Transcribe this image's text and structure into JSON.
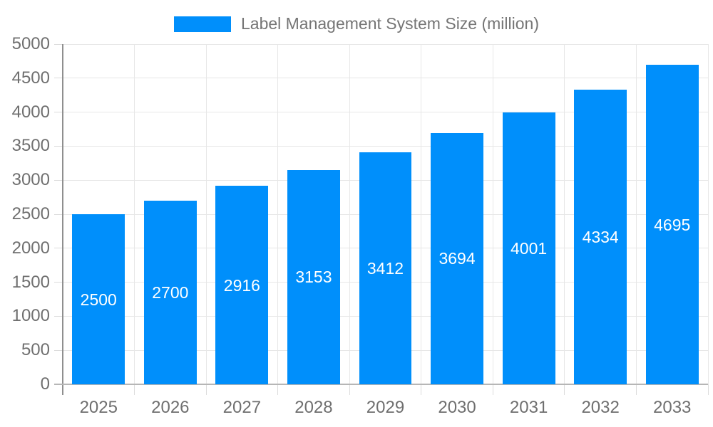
{
  "chart_data": {
    "type": "bar",
    "title": "",
    "legend_label": "Label Management System Size (million)",
    "legend_position": "top",
    "categories": [
      "2025",
      "2026",
      "2027",
      "2028",
      "2029",
      "2030",
      "2031",
      "2032",
      "2033"
    ],
    "values": [
      2500,
      2700,
      2916,
      3153,
      3412,
      3694,
      4001,
      4334,
      4695
    ],
    "xlabel": "",
    "ylabel": "",
    "ylim": [
      0,
      5000
    ],
    "ytick_step": 500,
    "ytick_labels": [
      "0",
      "500",
      "1000",
      "1500",
      "2000",
      "2500",
      "3000",
      "3500",
      "4000",
      "4500",
      "5000"
    ],
    "grid": true,
    "value_labels": "inside-center",
    "colors": {
      "bar": "#008FFB",
      "grid": "#e7e7e7",
      "axis_text": "#6f6f6f",
      "legend_text": "#757575",
      "value_label_text": "#ffffff",
      "background": "#ffffff"
    }
  }
}
